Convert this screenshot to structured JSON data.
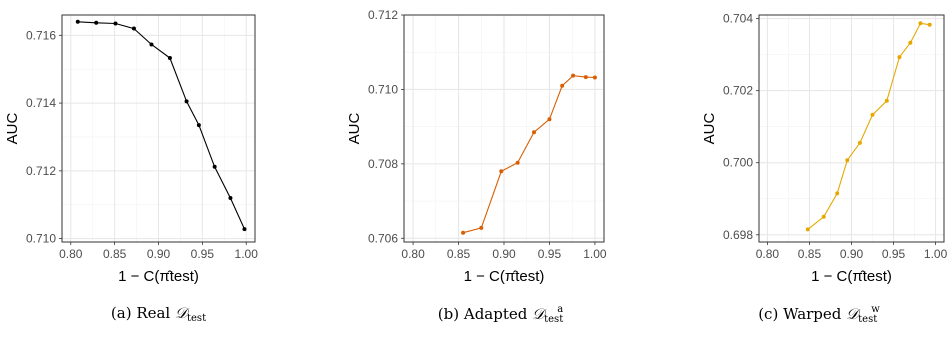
{
  "chart_data": [
    {
      "type": "line",
      "ylabel": "AUC",
      "xlabel": "1 − C(π̂test)",
      "xlim": [
        0.79,
        1.01
      ],
      "ylim": [
        0.7099,
        0.7166
      ],
      "xticks": [
        "0.80",
        "0.85",
        "0.90",
        "0.95",
        "1.00"
      ],
      "yticks": [
        "0.710",
        "0.712",
        "0.714",
        "0.716"
      ],
      "ytick_values": [
        0.71,
        0.712,
        0.714,
        0.716
      ],
      "grid": true,
      "color": "#000000",
      "x": [
        0.808,
        0.829,
        0.851,
        0.872,
        0.892,
        0.913,
        0.932,
        0.946,
        0.964,
        0.982,
        0.998
      ],
      "y": [
        0.7164,
        0.71637,
        0.71635,
        0.7162,
        0.71573,
        0.71533,
        0.71405,
        0.71335,
        0.71212,
        0.7112,
        0.71028
      ],
      "caption": {
        "prefix": "(a) Real ",
        "symbol": "𝒟",
        "sub": "test",
        "sup": ""
      }
    },
    {
      "type": "line",
      "ylabel": "AUC",
      "xlabel": "1 − C(π̂test)",
      "xlim": [
        0.79,
        1.01
      ],
      "ylim": [
        0.7059,
        0.712
      ],
      "xticks": [
        "0.80",
        "0.85",
        "0.90",
        "0.95",
        "1.00"
      ],
      "yticks": [
        "0.706",
        "0.708",
        "0.710",
        "0.712"
      ],
      "ytick_values": [
        0.706,
        0.708,
        0.71,
        0.712
      ],
      "grid": true,
      "color": "#d95f02",
      "x": [
        0.855,
        0.875,
        0.897,
        0.915,
        0.933,
        0.95,
        0.964,
        0.976,
        0.99,
        1.0
      ],
      "y": [
        0.70615,
        0.70628,
        0.7078,
        0.70803,
        0.70885,
        0.7092,
        0.7101,
        0.71037,
        0.71033,
        0.71032
      ],
      "caption": {
        "prefix": "(b) Adapted ",
        "symbol": "𝒟",
        "sub": "test",
        "sup": "a"
      }
    },
    {
      "type": "line",
      "ylabel": "AUC",
      "xlabel": "1 − C(π̂test)",
      "xlim": [
        0.79,
        1.01
      ],
      "ylim": [
        0.6978,
        0.7041
      ],
      "xticks": [
        "0.80",
        "0.85",
        "0.90",
        "0.95",
        "1.00"
      ],
      "yticks": [
        "0.698",
        "0.700",
        "0.702",
        "0.704"
      ],
      "ytick_values": [
        0.698,
        0.7,
        0.702,
        0.704
      ],
      "grid": true,
      "color": "#e6a800",
      "x": [
        0.848,
        0.867,
        0.883,
        0.895,
        0.91,
        0.925,
        0.942,
        0.957,
        0.97,
        0.982,
        0.993
      ],
      "y": [
        0.69815,
        0.6985,
        0.69915,
        0.70007,
        0.70055,
        0.70133,
        0.70172,
        0.70293,
        0.70333,
        0.70387,
        0.70383
      ],
      "caption": {
        "prefix": "(c) Warped ",
        "symbol": "𝒟",
        "sub": "test",
        "sup": "w"
      }
    }
  ]
}
